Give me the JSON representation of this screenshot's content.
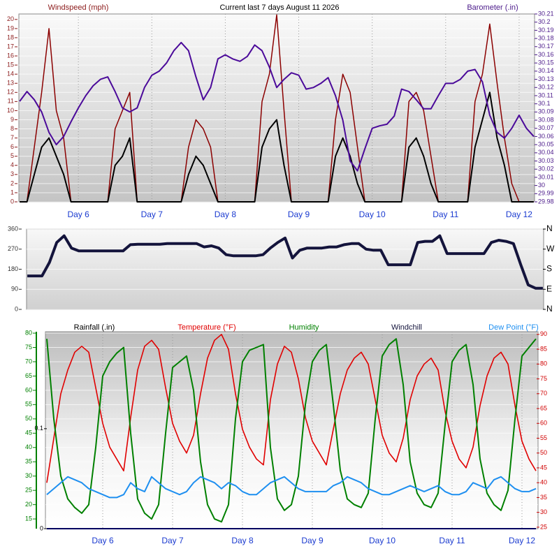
{
  "chart_data": [
    {
      "type": "line",
      "title": "Current last 7 days August 11 2026",
      "y_label": "Windspeed (mph)",
      "y2_label": "Barometer (.in)",
      "y_color": "#8b1a1a",
      "y2_color": "#4b1a8a",
      "x": [
        5.2,
        5.3,
        5.4,
        5.5,
        5.6,
        5.7,
        5.8,
        5.9,
        6,
        6.1,
        6.2,
        6.3,
        6.4,
        6.5,
        6.6,
        6.7,
        6.8,
        6.9,
        7,
        7.1,
        7.2,
        7.3,
        7.4,
        7.5,
        7.6,
        7.7,
        7.8,
        7.9,
        8,
        8.1,
        8.2,
        8.3,
        8.4,
        8.5,
        8.6,
        8.7,
        8.8,
        8.9,
        9,
        9.1,
        9.2,
        9.3,
        9.4,
        9.5,
        9.6,
        9.7,
        9.8,
        9.9,
        10,
        10.1,
        10.2,
        10.3,
        10.4,
        10.5,
        10.6,
        10.7,
        10.8,
        10.9,
        11,
        11.1,
        11.2,
        11.3,
        11.4,
        11.5,
        11.6,
        11.7,
        11.8,
        11.9,
        12,
        12.1,
        12.2
      ],
      "xlim": [
        5.19,
        12.21
      ],
      "xticks": [
        {
          "value": 6,
          "label": "Day 6"
        },
        {
          "value": 7,
          "label": "Day 7"
        },
        {
          "value": 8,
          "label": "Day 8"
        },
        {
          "value": 9,
          "label": "Day 9"
        },
        {
          "value": 10,
          "label": "Day 10"
        },
        {
          "value": 11,
          "label": "Day 11"
        },
        {
          "value": 12,
          "label": "Day 12"
        }
      ],
      "ylim": [
        0,
        20.6
      ],
      "yticks": [
        0,
        1,
        2,
        3,
        4,
        5,
        6,
        7,
        8,
        9,
        10,
        11,
        12,
        13,
        14,
        15,
        16,
        17,
        18,
        19,
        20
      ],
      "y2lim": [
        29.98,
        30.21
      ],
      "y2ticks": [
        29.98,
        29.99,
        30,
        30.01,
        30.02,
        30.03,
        30.04,
        30.05,
        30.06,
        30.07,
        30.08,
        30.09,
        30.1,
        30.11,
        30.12,
        30.13,
        30.14,
        30.15,
        30.16,
        30.17,
        30.18,
        30.19,
        30.2,
        30.21
      ],
      "grid": true,
      "series": [
        {
          "color": "#8b0000",
          "width": 1.5,
          "values": [
            0,
            0,
            6,
            12,
            19,
            10,
            7,
            0,
            0,
            0,
            0,
            0,
            0,
            8,
            10,
            12,
            0,
            0,
            0,
            0,
            0,
            0,
            0,
            6,
            9,
            8,
            6,
            0,
            0,
            0,
            0,
            0,
            0,
            11,
            14,
            20.5,
            10,
            0,
            0,
            0,
            0,
            0,
            0,
            9,
            14,
            12,
            6,
            0,
            0,
            0,
            0,
            0,
            0,
            11,
            12,
            10,
            5,
            0,
            0,
            0,
            0,
            0,
            11,
            14,
            19.5,
            13,
            7,
            2,
            0,
            0,
            0
          ]
        },
        {
          "color": "#000000",
          "width": 2,
          "values": [
            0,
            0,
            3,
            6,
            7,
            5,
            3,
            0,
            0,
            0,
            0,
            0,
            0,
            4,
            5,
            7,
            0,
            0,
            0,
            0,
            0,
            0,
            0,
            3,
            5,
            4,
            2,
            0,
            0,
            0,
            0,
            0,
            0,
            6,
            8,
            9,
            4,
            0,
            0,
            0,
            0,
            0,
            0,
            5,
            7,
            5,
            2,
            0,
            0,
            0,
            0,
            0,
            0,
            6,
            7,
            5,
            2,
            0,
            0,
            0,
            0,
            0,
            6,
            9,
            12,
            7,
            4,
            0,
            0,
            0,
            0
          ]
        },
        {
          "color": "#4b0a9a",
          "width": 2,
          "axis": "y2",
          "values": [
            30.103,
            30.115,
            30.105,
            30.09,
            30.065,
            30.05,
            30.06,
            30.078,
            30.095,
            30.11,
            30.122,
            30.13,
            30.133,
            30.115,
            30.095,
            30.09,
            30.095,
            30.12,
            30.135,
            30.14,
            30.15,
            30.165,
            30.175,
            30.165,
            30.133,
            30.105,
            30.12,
            30.155,
            30.16,
            30.155,
            30.152,
            30.158,
            30.172,
            30.165,
            30.145,
            30.12,
            30.13,
            30.138,
            30.135,
            30.118,
            30.12,
            30.125,
            30.132,
            30.11,
            30.08,
            30.03,
            30.018,
            30.045,
            30.07,
            30.073,
            30.075,
            30.085,
            30.118,
            30.115,
            30.105,
            30.094,
            30.094,
            30.11,
            30.125,
            30.125,
            30.13,
            30.14,
            30.142,
            30.127,
            30.086,
            30.065,
            30.058,
            30.07,
            30.086,
            30.07,
            30.06
          ]
        }
      ]
    },
    {
      "type": "line",
      "y_color": "#333333",
      "y2_color": "#000000",
      "x": [
        5.2,
        5.3,
        5.4,
        5.5,
        5.6,
        5.7,
        5.8,
        5.9,
        6,
        6.1,
        6.2,
        6.3,
        6.4,
        6.5,
        6.6,
        6.7,
        6.8,
        6.9,
        7,
        7.1,
        7.2,
        7.3,
        7.4,
        7.5,
        7.6,
        7.7,
        7.8,
        7.9,
        8,
        8.1,
        8.2,
        8.3,
        8.4,
        8.5,
        8.6,
        8.7,
        8.8,
        8.9,
        9,
        9.1,
        9.2,
        9.3,
        9.4,
        9.5,
        9.6,
        9.7,
        9.8,
        9.9,
        10,
        10.1,
        10.2,
        10.3,
        10.4,
        10.5,
        10.6,
        10.7,
        10.8,
        10.9,
        11,
        11.1,
        11.2,
        11.3,
        11.4,
        11.5,
        11.6,
        11.7,
        11.8,
        11.9,
        12,
        12.1,
        12.2
      ],
      "xlim": [
        5.19,
        12.21
      ],
      "ylim": [
        0,
        360
      ],
      "yticks": [
        0,
        90,
        180,
        270,
        360
      ],
      "y2lim": [
        0,
        360
      ],
      "y2ticks": [
        {
          "value": 0,
          "label": "N"
        },
        {
          "value": 90,
          "label": "E"
        },
        {
          "value": 180,
          "label": "S"
        },
        {
          "value": 270,
          "label": "W"
        },
        {
          "value": 360,
          "label": "N"
        }
      ],
      "grid": true,
      "series": [
        {
          "color": "#14143c",
          "width": 4,
          "values": [
            150,
            150,
            150,
            210,
            300,
            330,
            275,
            262,
            262,
            262,
            262,
            262,
            262,
            262,
            290,
            292,
            292,
            292,
            292,
            295,
            295,
            295,
            295,
            295,
            280,
            285,
            275,
            245,
            240,
            240,
            240,
            240,
            245,
            275,
            300,
            320,
            230,
            265,
            275,
            275,
            275,
            280,
            280,
            290,
            295,
            295,
            270,
            265,
            265,
            200,
            200,
            200,
            200,
            300,
            305,
            305,
            330,
            250,
            250,
            250,
            250,
            250,
            250,
            300,
            310,
            305,
            295,
            200,
            110,
            95,
            95
          ]
        }
      ]
    },
    {
      "type": "line",
      "y_color": "#008000",
      "y2_color": "#d00000",
      "y3_color": "#000000",
      "windchill_label": "Windchill",
      "x": [
        5.2,
        5.3,
        5.4,
        5.5,
        5.6,
        5.7,
        5.8,
        5.9,
        6,
        6.1,
        6.2,
        6.3,
        6.4,
        6.5,
        6.6,
        6.7,
        6.8,
        6.9,
        7,
        7.1,
        7.2,
        7.3,
        7.4,
        7.5,
        7.6,
        7.7,
        7.8,
        7.9,
        8,
        8.1,
        8.2,
        8.3,
        8.4,
        8.5,
        8.6,
        8.7,
        8.8,
        8.9,
        9,
        9.1,
        9.2,
        9.3,
        9.4,
        9.5,
        9.6,
        9.7,
        9.8,
        9.9,
        10,
        10.1,
        10.2,
        10.3,
        10.4,
        10.5,
        10.6,
        10.7,
        10.8,
        10.9,
        11,
        11.1,
        11.2,
        11.3,
        11.4,
        11.5,
        11.6,
        11.7,
        11.8,
        11.9,
        12,
        12.1,
        12.2
      ],
      "xlim": [
        5.18,
        12.23
      ],
      "xticks": [
        {
          "value": 6,
          "label": "Day 6"
        },
        {
          "value": 7,
          "label": "Day 7"
        },
        {
          "value": 8,
          "label": "Day 8"
        },
        {
          "value": 9,
          "label": "Day 9"
        },
        {
          "value": 10,
          "label": "Day 10"
        },
        {
          "value": 11,
          "label": "Day 11"
        },
        {
          "value": 12,
          "label": "Day 12"
        }
      ],
      "ylim": [
        11.6,
        80.5
      ],
      "yticks": [
        15,
        20,
        25,
        30,
        35,
        40,
        45,
        50,
        55,
        60,
        65,
        70,
        75,
        80
      ],
      "y2lim": [
        24.5,
        90.9
      ],
      "y2ticks": [
        25,
        30,
        35,
        40,
        45,
        50,
        55,
        60,
        65,
        70,
        75,
        80,
        85,
        90
      ],
      "y3lim": [
        0,
        0.197
      ],
      "y3ticks": [
        0,
        0.1
      ],
      "grid": true,
      "series": [
        {
          "name": "Rainfall (.in)",
          "color": "#000060",
          "width": 2,
          "axis": "y3",
          "values": [
            0,
            0,
            0,
            0,
            0,
            0,
            0,
            0,
            0,
            0,
            0,
            0,
            0,
            0,
            0,
            0,
            0,
            0,
            0,
            0,
            0,
            0,
            0,
            0,
            0,
            0,
            0,
            0,
            0,
            0,
            0,
            0,
            0,
            0,
            0,
            0,
            0,
            0,
            0,
            0,
            0,
            0,
            0,
            0,
            0,
            0,
            0,
            0,
            0,
            0,
            0,
            0,
            0,
            0,
            0,
            0,
            0,
            0,
            0,
            0,
            0,
            0,
            0,
            0,
            0,
            0,
            0,
            0,
            0,
            0,
            0
          ]
        },
        {
          "name": "Temperature (°F)",
          "color": "#e00000",
          "width": 1.6,
          "axis": "y2",
          "values": [
            40,
            55,
            70,
            78,
            84,
            86,
            84,
            72,
            60,
            52,
            48,
            44,
            62,
            78,
            86,
            88,
            85,
            72,
            60,
            54,
            50,
            56,
            70,
            82,
            88,
            90,
            85,
            70,
            58,
            52,
            48,
            46,
            68,
            80,
            86,
            84,
            75,
            62,
            54,
            50,
            46,
            58,
            70,
            78,
            82,
            84,
            80,
            68,
            56,
            50,
            47,
            55,
            68,
            76,
            80,
            82,
            78,
            64,
            54,
            48,
            45,
            52,
            66,
            76,
            82,
            84,
            80,
            66,
            54,
            48,
            44
          ]
        },
        {
          "name": "Humidity",
          "color": "#008000",
          "width": 2,
          "axis": "y",
          "values": [
            78,
            50,
            30,
            22,
            19,
            17,
            20,
            40,
            65,
            70,
            73,
            75,
            45,
            22,
            17,
            15,
            20,
            45,
            68,
            70,
            72,
            60,
            35,
            20,
            15,
            14,
            20,
            50,
            70,
            74,
            75,
            76,
            40,
            22,
            18,
            20,
            30,
            55,
            70,
            74,
            76,
            55,
            32,
            22,
            20,
            19,
            24,
            50,
            72,
            76,
            78,
            62,
            35,
            24,
            20,
            19,
            24,
            48,
            70,
            74,
            76,
            62,
            36,
            24,
            20,
            18,
            25,
            50,
            72,
            75,
            78
          ]
        },
        {
          "name": "Dew Point (°F)",
          "color": "#1e8ff0",
          "width": 2,
          "axis": "y2",
          "values": [
            36,
            38,
            40,
            42,
            41,
            40,
            38,
            37,
            36,
            35,
            35,
            36,
            40,
            38,
            37,
            42,
            40,
            38,
            37,
            36,
            37,
            40,
            42,
            41,
            40,
            38,
            40,
            39,
            37,
            36,
            36,
            38,
            40,
            41,
            42,
            40,
            38,
            37,
            37,
            37,
            37,
            39,
            40,
            42,
            41,
            40,
            38,
            37,
            36,
            36,
            37,
            38,
            39,
            38,
            37,
            38,
            39,
            37,
            36,
            36,
            37,
            40,
            39,
            38,
            41,
            42,
            40,
            38,
            37,
            37,
            38
          ]
        }
      ]
    }
  ]
}
